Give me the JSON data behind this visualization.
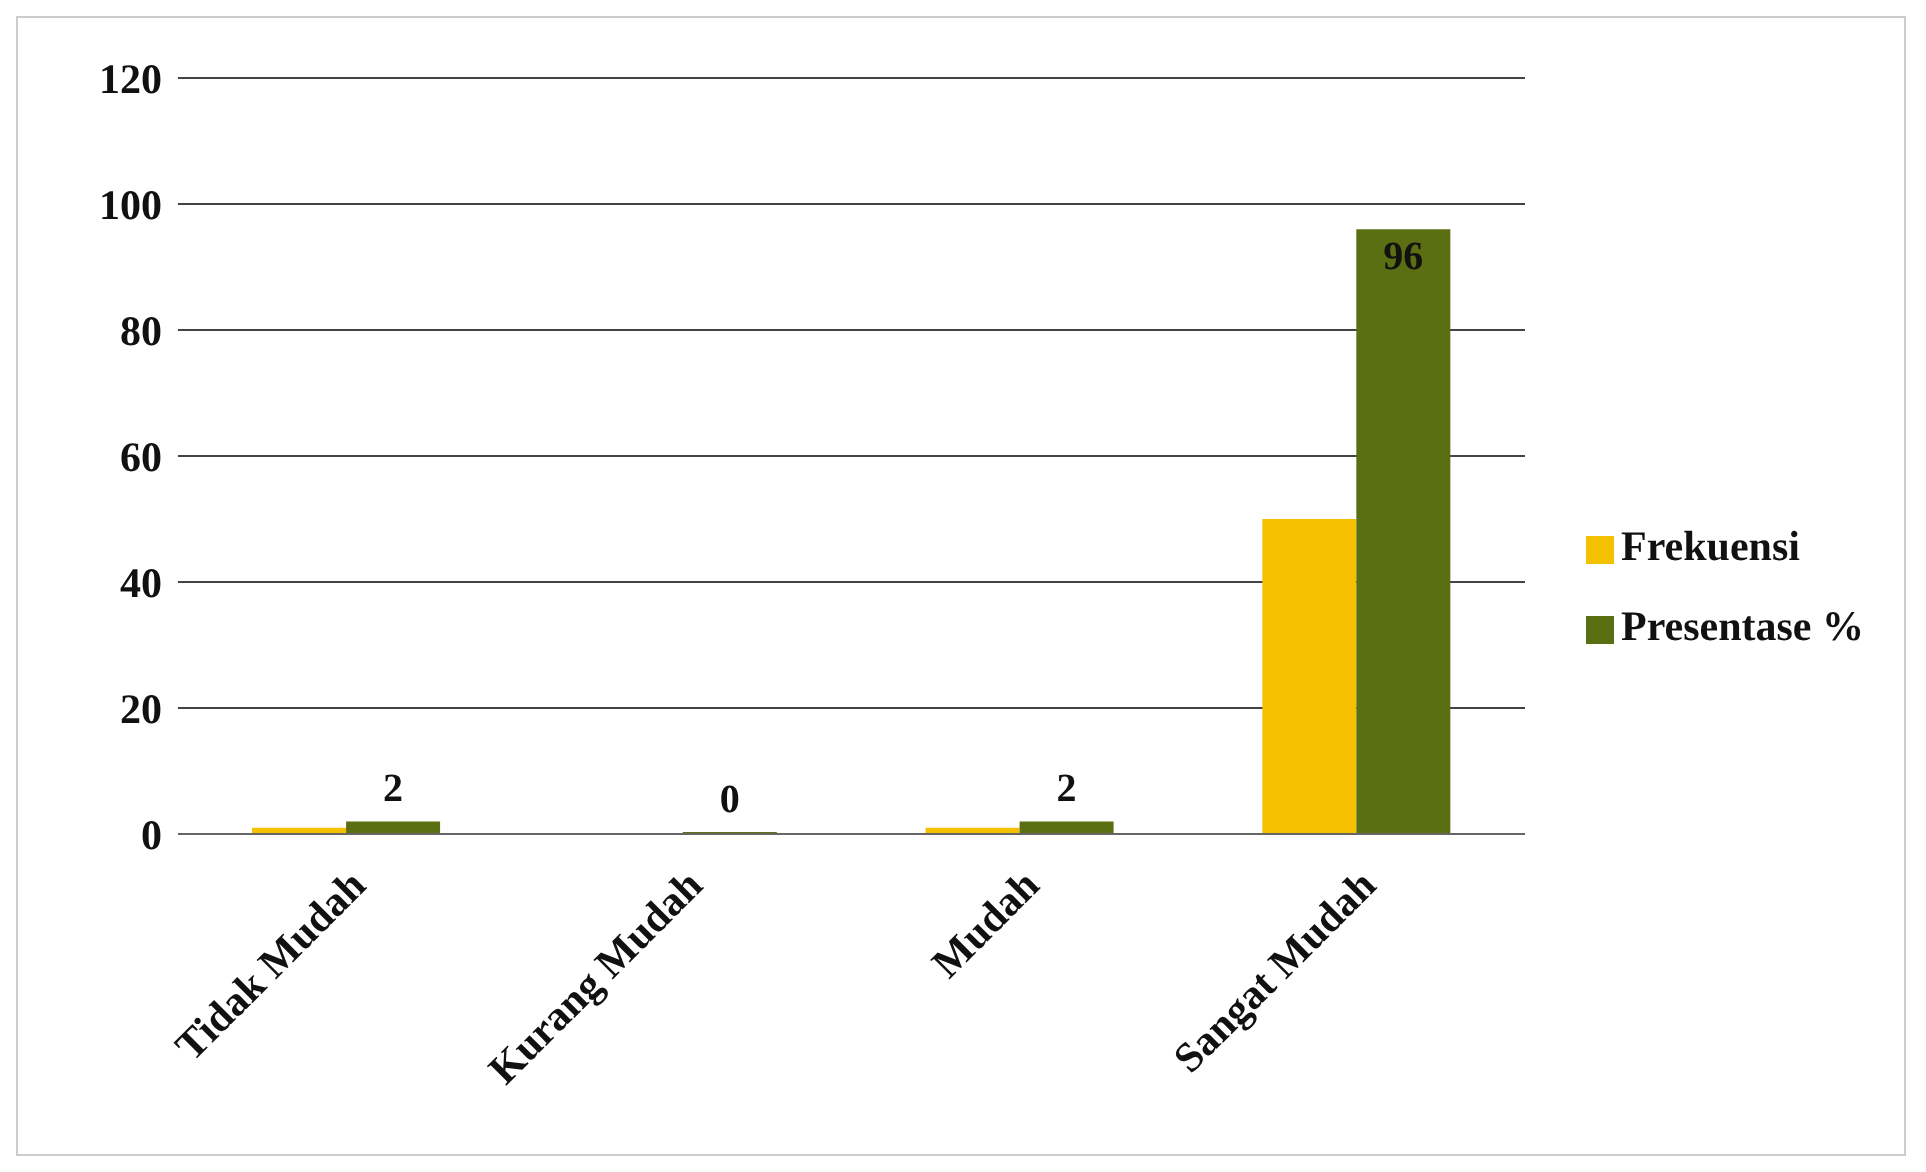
{
  "chart_data": {
    "type": "bar",
    "categories": [
      "Tidak Mudah",
      "Kurang Mudah",
      "Mudah",
      "Sangat Mudah"
    ],
    "series": [
      {
        "name": "Frekuensi",
        "color": "#f5c000",
        "values": [
          1,
          0,
          1,
          50
        ]
      },
      {
        "name": "Presentase %",
        "color": "#5a6e12",
        "values": [
          2,
          0,
          2,
          96
        ],
        "value_labels": [
          "2",
          "0",
          "2",
          "96"
        ]
      }
    ],
    "ylim": [
      0,
      120
    ],
    "yticks": [
      0,
      20,
      40,
      60,
      80,
      100,
      120
    ],
    "grid": "y",
    "legend": "right"
  }
}
